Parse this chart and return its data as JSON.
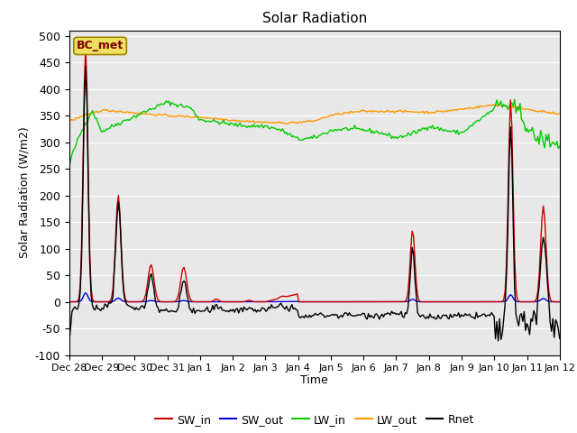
{
  "title": "Solar Radiation",
  "xlabel": "Time",
  "ylabel": "Solar Radiation (W/m2)",
  "ylim": [
    -100,
    510
  ],
  "yticks": [
    -100,
    -50,
    0,
    50,
    100,
    150,
    200,
    250,
    300,
    350,
    400,
    450,
    500
  ],
  "date_labels": [
    "Dec 28",
    "Dec 29",
    "Dec 30",
    "Dec 31",
    "Jan 1",
    "Jan 2",
    "Jan 3",
    "Jan 4",
    "Jan 5",
    "Jan 6",
    "Jan 7",
    "Jan 8",
    "Jan 9",
    "Jan 10",
    "Jan 11",
    "Jan 12"
  ],
  "station_label": "BC_met",
  "colors": {
    "SW_in": "#cc0000",
    "SW_out": "#0000dd",
    "LW_in": "#00cc00",
    "LW_out": "#ff9900",
    "Rnet": "#000000",
    "background": "#e8e8e8"
  },
  "legend_labels": [
    "SW_in",
    "SW_out",
    "LW_in",
    "LW_out",
    "Rnet"
  ]
}
